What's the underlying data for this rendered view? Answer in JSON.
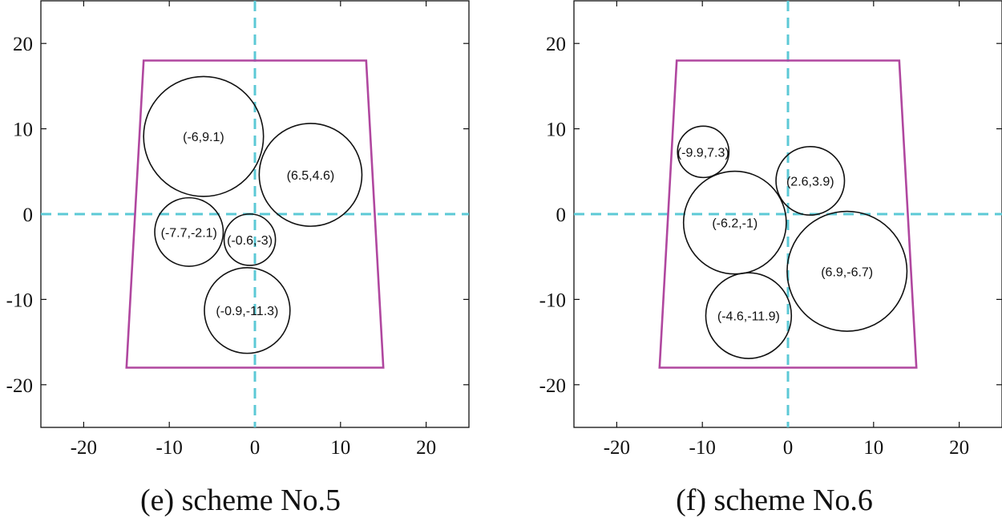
{
  "chart_data": [
    {
      "type": "scatter",
      "title": "(e) scheme No.5",
      "xlim": [
        -25,
        25
      ],
      "ylim": [
        -25,
        25
      ],
      "xticks": [
        -20,
        -10,
        0,
        10,
        20
      ],
      "yticks": [
        -20,
        -10,
        0,
        10,
        20
      ],
      "boundary": [
        [
          -13,
          18
        ],
        [
          13,
          18
        ],
        [
          15,
          -18
        ],
        [
          -15,
          -18
        ]
      ],
      "circles": [
        {
          "cx": -6,
          "cy": 9.1,
          "r": 7,
          "label": "(-6,9.1)"
        },
        {
          "cx": 6.5,
          "cy": 4.6,
          "r": 6,
          "label": "(6.5,4.6)"
        },
        {
          "cx": -7.7,
          "cy": -2.1,
          "r": 4,
          "label": "(-7.7,-2.1)"
        },
        {
          "cx": -0.6,
          "cy": -3,
          "r": 3,
          "label": "(-0.6,-3)"
        },
        {
          "cx": -0.9,
          "cy": -11.3,
          "r": 5,
          "label": "(-0.9,-11.3)"
        }
      ],
      "colors": {
        "boundary": "#b0479f",
        "axes_lines": "#5cc9d6",
        "circles": "#111111"
      }
    },
    {
      "type": "scatter",
      "title": "(f) scheme No.6",
      "xlim": [
        -25,
        25
      ],
      "ylim": [
        -25,
        25
      ],
      "xticks": [
        -20,
        -10,
        0,
        10,
        20
      ],
      "yticks": [
        -20,
        -10,
        0,
        10,
        20
      ],
      "boundary": [
        [
          -13,
          18
        ],
        [
          13,
          18
        ],
        [
          15,
          -18
        ],
        [
          -15,
          -18
        ]
      ],
      "circles": [
        {
          "cx": -9.9,
          "cy": 7.3,
          "r": 3,
          "label": "(-9.9,7.3)"
        },
        {
          "cx": 2.6,
          "cy": 3.9,
          "r": 4,
          "label": "(2.6,3.9)"
        },
        {
          "cx": -6.2,
          "cy": -1,
          "r": 6,
          "label": "(-6.2,-1)"
        },
        {
          "cx": 6.9,
          "cy": -6.7,
          "r": 7,
          "label": "(6.9,-6.7)"
        },
        {
          "cx": -4.6,
          "cy": -11.9,
          "r": 5,
          "label": "(-4.6,-11.9)"
        }
      ],
      "colors": {
        "boundary": "#b0479f",
        "axes_lines": "#5cc9d6",
        "circles": "#111111"
      }
    }
  ]
}
